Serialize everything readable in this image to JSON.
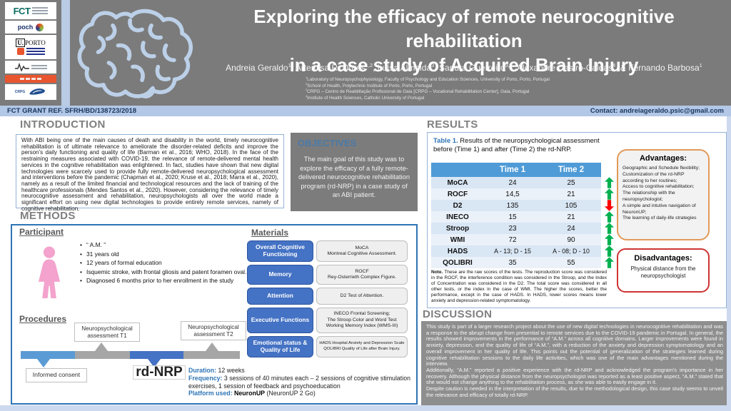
{
  "header": {
    "title_line1": "Exploring the efficacy of remote neurocognitive rehabilitation",
    "title_line2": "in a case study of Acquired Brain Injury",
    "authors": [
      {
        "name": "Andreia Geraldo",
        "sup": "1"
      },
      {
        "name": "Artemisa R. Dores",
        "sup": "1,2"
      },
      {
        "name": "Luísa Almeida",
        "sup": "3"
      },
      {
        "name": "Sandra Guerreiro",
        "sup": "3,4"
      },
      {
        "name": "Alexandre Castro-Caldas",
        "sup": "4"
      },
      {
        "name": "& Fernando Barbosa",
        "sup": "1"
      }
    ],
    "affiliations": [
      {
        "sup": "1",
        "text": "Laboratory of Neuropsychophysiology, Faculty of Psychology and Education Sciences, University of Porto, Porto, Portugal"
      },
      {
        "sup": "2",
        "text": "School of Health, Polytechnic Institute of Porto, Porto, Portugal"
      },
      {
        "sup": "3",
        "text": "CRPG – Centro de Reabilitação Profissional de Gaia [CRPG – Vocational Rehabilitation Center], Gaia, Portugal"
      },
      {
        "sup": "4",
        "text": "Institute of Health Sciences, Catholic University of Portugal"
      }
    ],
    "logos": {
      "fct": "FCT",
      "poch": "poch",
      "uporto": "U.",
      "uporto_rest": "PORTO",
      "crpg": "CRPG"
    }
  },
  "grant_bar": {
    "grant": "FCT GRANT REF. SFRH/BD/138723/2018",
    "contact": "Contact: andreiageraldo.psic@gmail.com"
  },
  "introduction": {
    "heading": "INTRODUCTION",
    "text": "With ABI being one of the main causes of death and disability in the world, timely neurocognitive rehabilitation is of ultimate relevance to ameliorate the disorder-related deficits and improve the person’s daily functioning and quality of life (Barman et al., 2016; WHO, 2018). In the face of the restraining measures associated with COVID-19, the relevance of remote-delivered mental health services in the cognitive rehabilitation was enlightened. In fact, studies have shown that new digital technologies were scarcely used to provide fully remote-delivered neuropsychological assessment and interventions before the pandemic (Chapman et al., 2020; Kruse et al., 2018; Marra et al., 2020), namely as a result of the limited financial and technological resources and the lack of training of the healthcare professionals (Mendes Santos et al., 2020). However, considering the relevance of timely neurocognitive assessment and rehabilitation, neuropsychologists all over the world made a significant effort on using new digital technologies to provide entirely remote services, namely of cognitive rehabilitation."
  },
  "objectives": {
    "heading": "OBJECTIVES",
    "text": "The main goal of this study was to explore the efficacy of a fully remote-delivered neurocognitive rehabilitation program (rd-NRP) in a case study of an ABI patient."
  },
  "methods": {
    "heading": "METHODS",
    "participant_heading": "Participant",
    "participant_bullets": [
      "“ A.M. ”",
      "31 years old",
      "12 years of formal education",
      "Isquemic stroke, with frontal gliosis and patent foramen oval.",
      "Diagnosed 6 months prior to her enrollment in the study"
    ],
    "procedures_heading": "Procedures",
    "timeline_labels": {
      "consent": "Informed consent",
      "t1": "Neuropsychological assessment T1",
      "t2": "Neuropsychological assessment T2",
      "program": "rd-NRP"
    },
    "program_details": {
      "duration_label": "Duration:",
      "duration": " 12 weeks",
      "frequency_label": "Frequency:",
      "frequency": " 3 sessions of 40 minutes each – 2 sessions of cognitive stimulation exercises, 1 session of feedback and psychoeducation",
      "platform_label": "Platform used:",
      "platform_name": " NeuronUP",
      "platform_rest": " (NeuronUP 2 Go)"
    },
    "materials_heading": "Materials",
    "materials": [
      {
        "domain": "Overall Cognitive Functioning",
        "tests": [
          "MoCA",
          "Montreal Cognitive Assessment."
        ]
      },
      {
        "domain": "Memory",
        "tests": [
          "ROCF",
          "Rey-Osterrieth Complex Figure."
        ]
      },
      {
        "domain": "Attention",
        "tests": [
          "D2 Test of Attention."
        ]
      },
      {
        "domain": "Executive Functions",
        "tests": [
          "INECO Frontal Screening;",
          "The Stroop Color and Word Test",
          "Working Memory Index (WMS-III)"
        ]
      },
      {
        "domain": "Emotional status & Quality of Life",
        "tests": [
          "HADS Hospital Anxiety and Depression Scale",
          "QOLIBRI Quality of Life after Brain Injury."
        ]
      }
    ]
  },
  "results": {
    "heading": "RESULTS",
    "table_caption_label": "Table 1.",
    "table_caption": " Results of the neuropsychological assessment before (Time 1) and after (Time 2) the rd-NRP.",
    "table": {
      "headers": [
        "",
        "Time 1",
        "Time 2"
      ],
      "rows": [
        {
          "label": "MoCA",
          "time1": "24",
          "time2": "25",
          "trend": "up"
        },
        {
          "label": "ROCF",
          "time1": "14,5",
          "time2": "21",
          "trend": "up"
        },
        {
          "label": "D2",
          "time1": "135",
          "time2": "105",
          "trend": "down"
        },
        {
          "label": "INECO",
          "time1": "15",
          "time2": "21",
          "trend": "up"
        },
        {
          "label": "Stroop",
          "time1": "23",
          "time2": "24",
          "trend": "up"
        },
        {
          "label": "WMI",
          "time1": "72",
          "time2": "90",
          "trend": "up"
        },
        {
          "label": "HADS",
          "time1": "A - 13; D - 15",
          "time2": "A - 08; D - 10",
          "trend": "up"
        },
        {
          "label": "QOLIBRI",
          "time1": "35",
          "time2": "55",
          "trend": "up"
        }
      ]
    },
    "note_label": "Note.",
    "note": " These are the raw scores of the tests. The reproduction score was considered in the ROCF, the interference condition was considered in the Stroop, and the Index of Concentration was considered in the D2. The total score was considered in all other tests, or the index in the case of WMI. The higher the scores, better the performance, except in the case of HADS. In HADS, lower scores means lower anxiety and depression-related symptomatology.",
    "advantages": {
      "title": "Advantages:",
      "items": [
        "Geographic and Schedule flexibility;",
        "Customization of the rd-NRP according to her routines;",
        "Access to cognitive rehabilitation;",
        "The relationship with the neuropsychologist;",
        "A simple and intutive navigation of NeuronUP;",
        "The learning of daily-life strategies"
      ]
    },
    "disadvantages": {
      "title": "Disadvantages:",
      "text": "Physical distance from the neuropsychologist"
    }
  },
  "discussion": {
    "heading": "DISCUSSION",
    "paragraphs": [
      "This study is part of a larger research project about the use of new digital technologies in neurocognitive rehabilitation and was a response to the abrupt change from presential to remote services due to the COVID-19 pandemic in Portugal. In general, the results showed improvements in the performance of “A.M.” across all cognitive domains. Larger improvements were found in anxiety, depression, and the quality of life of “A.M.”, with a reduction of the anxiety and depression symptomatology and an overall improvement in her quality of life. This points out the potential of generalization of the strategies learned during cognitive rehabilitation sessions to the daily life activities, which was one of the main advantages mentioned during the interview.",
      "Additionally, “A.M.” reported a positive experience with the rd-NRP and acknowledged the program’s importance in her recovery. Although the physical distance from the neuropsychologist was reported as a least positive aspect, “A.M.” stated that she would not change anything to the rehabilitation process, as she was able to easily engage in it.",
      "Despite caution is needed in the interpretation of the results, due to the methodological design, this case study seems to unveil the relevance and efficacy of totally rd-NRP."
    ]
  },
  "colors": {
    "green_up": "#00b050",
    "red_down": "#ff0000",
    "accent_blue": "#2e74b5",
    "table_header": "#4f9bd7"
  }
}
